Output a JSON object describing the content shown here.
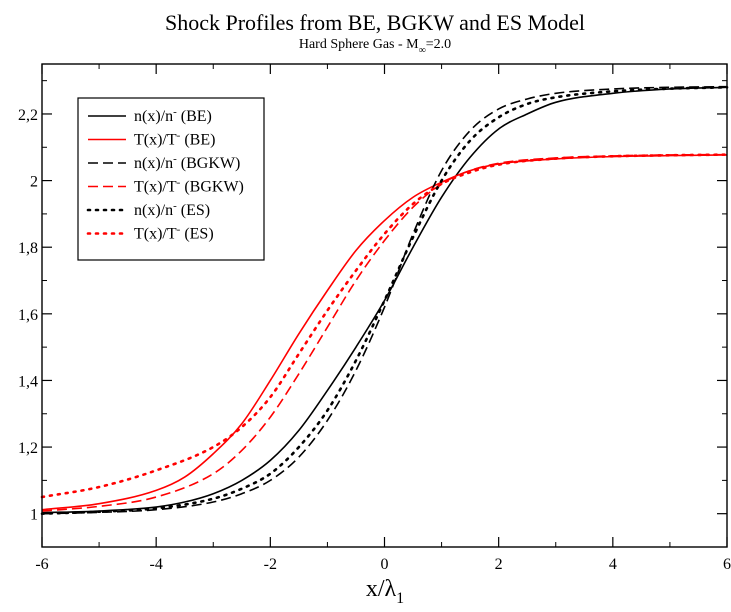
{
  "chart_data": {
    "type": "line",
    "title": "Shock Profiles from BE, BGKW and ES Model",
    "subtitle": {
      "main": "Hard Sphere Gas - M",
      "sub": "∞",
      "tail": "=2.0"
    },
    "xlabel": {
      "main": "x/λ",
      "sub": "1"
    },
    "ylabel": "",
    "xlim": [
      -6,
      6
    ],
    "ylim": [
      0.9,
      2.35
    ],
    "x_ticks": [
      -6,
      -4,
      -2,
      0,
      2,
      4,
      6
    ],
    "x_tick_labels": [
      "-6",
      "-4",
      "-2",
      "0",
      "2",
      "4",
      "6"
    ],
    "y_ticks": [
      1,
      1.2,
      1.4,
      1.6,
      1.8,
      2,
      2.2
    ],
    "y_tick_labels": [
      "1",
      "1,2",
      "1,4",
      "1,6",
      "1,8",
      "2",
      "2,2"
    ],
    "grid": false,
    "legend_position": "top-left",
    "colors": {
      "black": "#000000",
      "red": "#ff0000"
    },
    "series": [
      {
        "name": "n(x)/n (BE)",
        "legend": {
          "main": "n(x)/n",
          "sup": "-",
          "tail": " (BE)"
        },
        "color": "#000000",
        "dash": "solid",
        "x": [
          -6,
          -5,
          -4,
          -3.5,
          -3,
          -2.5,
          -2,
          -1.5,
          -1,
          -0.5,
          0,
          0.5,
          1,
          1.5,
          2,
          2.5,
          3,
          4,
          5,
          6
        ],
        "y": [
          1.003,
          1.008,
          1.02,
          1.035,
          1.06,
          1.1,
          1.16,
          1.25,
          1.37,
          1.5,
          1.64,
          1.8,
          1.95,
          2.07,
          2.155,
          2.2,
          2.235,
          2.262,
          2.275,
          2.28
        ]
      },
      {
        "name": "T(x)/T (BE)",
        "legend": {
          "main": "T(x)/T",
          "sup": "-",
          "tail": " (BE)"
        },
        "color": "#ff0000",
        "dash": "solid",
        "x": [
          -6,
          -5,
          -4,
          -3.5,
          -3,
          -2.5,
          -2,
          -1.5,
          -1,
          -0.5,
          0,
          0.5,
          1,
          1.5,
          2,
          3,
          4,
          5,
          6
        ],
        "y": [
          1.012,
          1.03,
          1.07,
          1.11,
          1.18,
          1.27,
          1.4,
          1.54,
          1.67,
          1.79,
          1.88,
          1.95,
          1.995,
          2.03,
          2.05,
          2.065,
          2.072,
          2.075,
          2.077
        ]
      },
      {
        "name": "n(x)/n (BGKW)",
        "legend": {
          "main": "n(x)/n",
          "sup": "-",
          "tail": " (BGKW)"
        },
        "color": "#000000",
        "dash": "dashed",
        "x": [
          -6,
          -5,
          -4,
          -3,
          -2.5,
          -2,
          -1.5,
          -1,
          -0.5,
          0,
          0.5,
          1,
          1.5,
          2,
          2.5,
          3,
          4,
          5,
          6
        ],
        "y": [
          1.0,
          1.004,
          1.012,
          1.035,
          1.06,
          1.1,
          1.17,
          1.28,
          1.43,
          1.62,
          1.84,
          2.03,
          2.15,
          2.215,
          2.245,
          2.262,
          2.275,
          2.28,
          2.282
        ]
      },
      {
        "name": "T(x)/T (BGKW)",
        "legend": {
          "main": "T(x)/T",
          "sup": "-",
          "tail": " (BGKW)"
        },
        "color": "#ff0000",
        "dash": "dashed",
        "x": [
          -6,
          -5,
          -4,
          -3,
          -2.5,
          -2,
          -1.5,
          -1,
          -0.5,
          0,
          0.5,
          1,
          1.5,
          2,
          3,
          4,
          5,
          6
        ],
        "y": [
          1.008,
          1.022,
          1.05,
          1.12,
          1.19,
          1.29,
          1.42,
          1.56,
          1.7,
          1.82,
          1.92,
          1.99,
          2.03,
          2.052,
          2.068,
          2.074,
          2.077,
          2.078
        ]
      },
      {
        "name": "n(x)/n (ES)",
        "legend": {
          "main": "n(x)/n",
          "sup": "-",
          "tail": " (ES)"
        },
        "color": "#000000",
        "dash": "dotted",
        "x": [
          -6,
          -5,
          -4,
          -3,
          -2.5,
          -2,
          -1.5,
          -1,
          -0.5,
          0,
          0.5,
          1,
          1.5,
          2,
          2.5,
          3,
          4,
          5,
          6
        ],
        "y": [
          1.0,
          1.006,
          1.016,
          1.045,
          1.075,
          1.12,
          1.2,
          1.31,
          1.46,
          1.64,
          1.83,
          2.0,
          2.12,
          2.19,
          2.23,
          2.25,
          2.268,
          2.276,
          2.28
        ]
      },
      {
        "name": "T(x)/T (ES)",
        "legend": {
          "main": "T(x)/T",
          "sup": "-",
          "tail": " (ES)"
        },
        "color": "#ff0000",
        "dash": "dotted",
        "x": [
          -6,
          -5,
          -4,
          -3,
          -2.5,
          -2,
          -1.5,
          -1,
          -0.5,
          0,
          0.5,
          1,
          1.5,
          2,
          3,
          4,
          5,
          6
        ],
        "y": [
          1.05,
          1.08,
          1.13,
          1.2,
          1.26,
          1.35,
          1.48,
          1.61,
          1.73,
          1.84,
          1.93,
          1.99,
          2.025,
          2.048,
          2.066,
          2.073,
          2.076,
          2.078
        ]
      }
    ]
  }
}
